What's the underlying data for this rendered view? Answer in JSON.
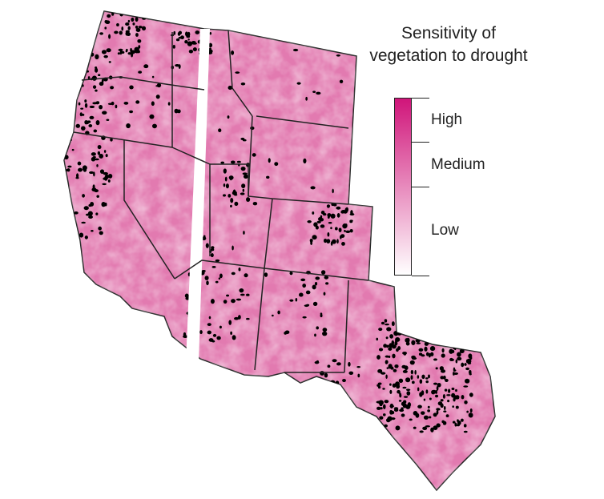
{
  "legend": {
    "title": "Sensitivity of vegetation to drought",
    "labels": [
      "High",
      "Medium",
      "Low"
    ],
    "color_high": "#d0157a",
    "color_low": "#ffffff"
  },
  "map": {
    "region": "Western United States",
    "fill_color": "#e27ab0",
    "dot_color": "#000000",
    "border_color": "#222222",
    "gap_color": "#ffffff"
  }
}
